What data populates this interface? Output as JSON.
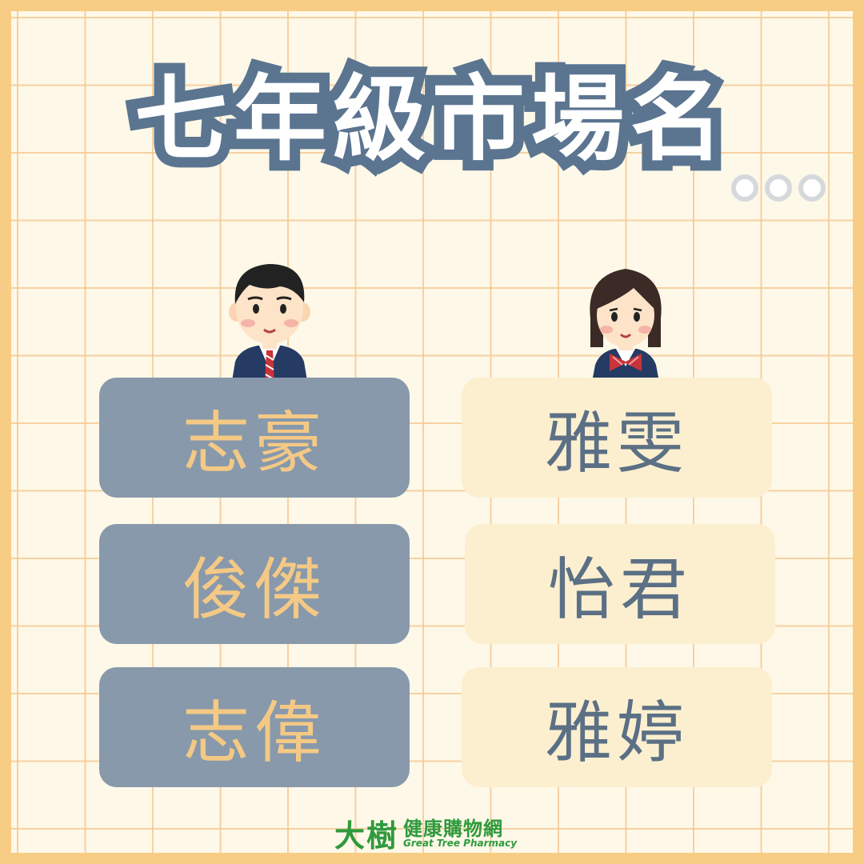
{
  "title": "七年級市場名",
  "boys": {
    "names": [
      "志豪",
      "俊傑",
      "志偉"
    ]
  },
  "girls": {
    "names": [
      "雅雯",
      "怡君",
      "雅婷"
    ]
  },
  "logo": {
    "main": "大樹",
    "zh": "健康購物網",
    "en": "Great Tree Pharmacy"
  },
  "colors": {
    "border": "#f7cd85",
    "title_outline": "#5b7591",
    "boy_card": "#8799ab",
    "boy_text": "#f3c985",
    "girl_card": "#fcefcf",
    "girl_text": "#5b6f85",
    "logo_green": "#2e9a3c"
  }
}
